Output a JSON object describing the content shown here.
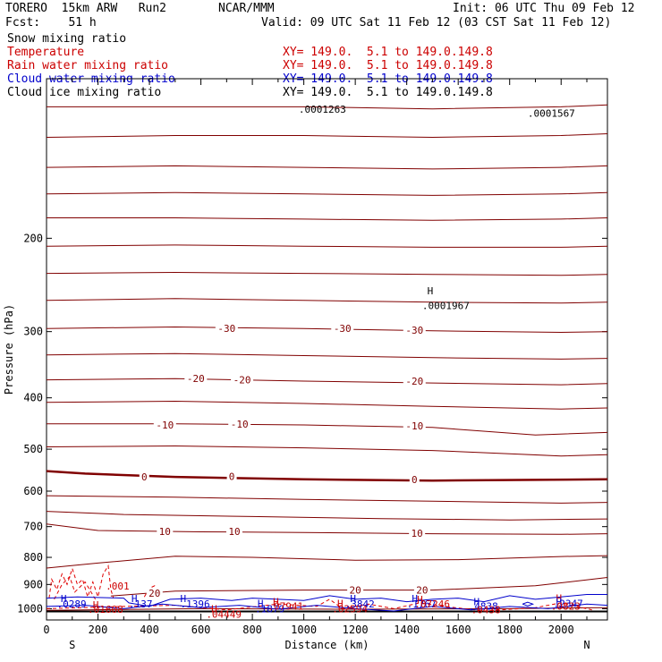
{
  "header": {
    "model": "TORERO  15km ARW   Run2",
    "org": "NCAR/MMM",
    "init": "Init: 06 UTC Thu 09 Feb 12",
    "fcst": "Fcst:    51 h",
    "valid": "Valid: 09 UTC Sat 11 Feb 12 (03 CST Sat 11 Feb 12)"
  },
  "legend": [
    {
      "label": "Snow mixing ratio",
      "xy": "",
      "color": "#000000"
    },
    {
      "label": "Temperature",
      "xy": "XY= 149.0.  5.1 to 149.0.149.8",
      "color": "#cc0000"
    },
    {
      "label": "Rain water mixing ratio",
      "xy": "XY= 149.0.  5.1 to 149.0.149.8",
      "color": "#cc0000"
    },
    {
      "label": "Cloud water mixing ratio",
      "xy": "XY= 149.0.  5.1 to 149.0.149.8",
      "color": "#0000cc"
    },
    {
      "label": "Cloud ice mixing ratio",
      "xy": "XY= 149.0.  5.1 to 149.0.149.8",
      "color": "#000000"
    }
  ],
  "chart_data": {
    "type": "contour cross-section",
    "xlabel": "Distance (km)",
    "ylabel": "Pressure (hPa)",
    "x_ticks": [
      0,
      200,
      400,
      600,
      800,
      1000,
      1200,
      1400,
      1600,
      1800,
      2000
    ],
    "y_ticks": [
      200,
      300,
      400,
      500,
      600,
      700,
      800,
      900,
      1000
    ],
    "xlim": [
      0,
      2180
    ],
    "ylim": [
      1050,
      100
    ],
    "y_scale": "log",
    "end_labels": {
      "left": "S",
      "right": "N"
    },
    "colors": {
      "temperature": "#800000",
      "rain": "#e00000",
      "cloudwater": "#0000cc",
      "ground": "#000000"
    },
    "temperature_labels": [
      {
        "text": "-30",
        "x": 700,
        "p": 296
      },
      {
        "text": "-30",
        "x": 1150,
        "p": 296
      },
      {
        "text": "-30",
        "x": 1430,
        "p": 298
      },
      {
        "text": "-20",
        "x": 580,
        "p": 368
      },
      {
        "text": "-20",
        "x": 760,
        "p": 370
      },
      {
        "text": "-20",
        "x": 1430,
        "p": 372
      },
      {
        "text": "-10",
        "x": 460,
        "p": 450
      },
      {
        "text": "-10",
        "x": 750,
        "p": 448
      },
      {
        "text": "-10",
        "x": 1430,
        "p": 452
      },
      {
        "text": "0",
        "x": 380,
        "p": 564
      },
      {
        "text": "0",
        "x": 720,
        "p": 563
      },
      {
        "text": "0",
        "x": 1430,
        "p": 570
      },
      {
        "text": "10",
        "x": 460,
        "p": 715
      },
      {
        "text": "10",
        "x": 730,
        "p": 715
      },
      {
        "text": "10",
        "x": 1440,
        "p": 720
      },
      {
        "text": "20",
        "x": 420,
        "p": 935
      },
      {
        "text": "20",
        "x": 1200,
        "p": 922
      },
      {
        "text": "20",
        "x": 1460,
        "p": 922
      }
    ],
    "extrema_labels": [
      {
        "text": "H",
        "x": 1480,
        "p": 255,
        "color": "#000000"
      },
      {
        "text": ".0001967",
        "x": 1460,
        "p": 272,
        "color": "#000000"
      },
      {
        "text": ".0001263",
        "x": 980,
        "p": 116,
        "color": "#000000"
      },
      {
        "text": ".0001567",
        "x": 1870,
        "p": 118,
        "color": "#000000"
      },
      {
        "text": ".001",
        "x": 230,
        "p": 920,
        "color": "#cc0000"
      },
      {
        "text": "H",
        "x": 55,
        "p": 972,
        "color": "#0000cc"
      },
      {
        "text": ".0289",
        "x": 40,
        "p": 995,
        "color": "#0000cc"
      },
      {
        "text": "H",
        "x": 180,
        "p": 998,
        "color": "#cc0000"
      },
      {
        "text": ".01608",
        "x": 160,
        "p": 1018,
        "color": "#cc0000"
      },
      {
        "text": "H",
        "x": 330,
        "p": 972,
        "color": "#0000cc"
      },
      {
        "text": ".137",
        "x": 320,
        "p": 995,
        "color": "#0000cc"
      },
      {
        "text": "H",
        "x": 520,
        "p": 972,
        "color": "#0000cc"
      },
      {
        "text": ".1396",
        "x": 520,
        "p": 995,
        "color": "#0000cc"
      },
      {
        "text": "H",
        "x": 640,
        "p": 1015,
        "color": "#cc0000"
      },
      {
        "text": ".04449",
        "x": 620,
        "p": 1040,
        "color": "#cc0000"
      },
      {
        "text": "H",
        "x": 820,
        "p": 992,
        "color": "#0000cc"
      },
      {
        "text": ".1879",
        "x": 810,
        "p": 1015,
        "color": "#0000cc"
      },
      {
        "text": "H",
        "x": 880,
        "p": 985,
        "color": "#cc0000"
      },
      {
        "text": ".07941",
        "x": 860,
        "p": 1005,
        "color": "#cc0000"
      },
      {
        "text": "H",
        "x": 1130,
        "p": 992,
        "color": "#cc0000"
      },
      {
        "text": ".02594",
        "x": 1110,
        "p": 1015,
        "color": "#cc0000"
      },
      {
        "text": "H",
        "x": 1180,
        "p": 972,
        "color": "#0000cc"
      },
      {
        "text": ".3842",
        "x": 1160,
        "p": 995,
        "color": "#0000cc"
      },
      {
        "text": "H",
        "x": 1420,
        "p": 972,
        "color": "#0000cc"
      },
      {
        "text": ".1767",
        "x": 1400,
        "p": 995,
        "color": "#0000cc"
      },
      {
        "text": "H",
        "x": 1440,
        "p": 975,
        "color": "#cc0000"
      },
      {
        "text": ".07246",
        "x": 1430,
        "p": 995,
        "color": "#cc0000"
      },
      {
        "text": "H",
        "x": 1660,
        "p": 985,
        "color": "#0000cc"
      },
      {
        "text": ".4838",
        "x": 1640,
        "p": 1005,
        "color": "#0000cc"
      },
      {
        "text": ".0438",
        "x": 1650,
        "p": 1020,
        "color": "#cc0000"
      },
      {
        "text": "H",
        "x": 1980,
        "p": 970,
        "color": "#cc0000"
      },
      {
        "text": "H",
        "x": 1980,
        "p": 985,
        "color": "#0000cc"
      },
      {
        "text": ".2347",
        "x": 1970,
        "p": 992,
        "color": "#0000cc"
      },
      {
        "text": ".0823",
        "x": 1960,
        "p": 1005,
        "color": "#cc0000"
      }
    ],
    "isotherms": [
      {
        "w": 1,
        "pts": [
          [
            0,
            113
          ],
          [
            500,
            113
          ],
          [
            1000,
            113
          ],
          [
            1500,
            114
          ],
          [
            2000,
            113
          ],
          [
            2180,
            112
          ]
        ]
      },
      {
        "w": 1,
        "pts": [
          [
            0,
            129
          ],
          [
            500,
            128
          ],
          [
            1000,
            128
          ],
          [
            1500,
            129
          ],
          [
            2000,
            128
          ],
          [
            2180,
            127
          ]
        ]
      },
      {
        "w": 1,
        "pts": [
          [
            0,
            147
          ],
          [
            500,
            146
          ],
          [
            1000,
            147
          ],
          [
            1500,
            148
          ],
          [
            2000,
            147
          ],
          [
            2180,
            146
          ]
        ]
      },
      {
        "w": 1,
        "pts": [
          [
            0,
            165
          ],
          [
            500,
            164
          ],
          [
            1000,
            165
          ],
          [
            1500,
            166
          ],
          [
            2000,
            165
          ],
          [
            2180,
            164
          ]
        ]
      },
      {
        "w": 1,
        "pts": [
          [
            0,
            183
          ],
          [
            500,
            183
          ],
          [
            1000,
            184
          ],
          [
            1500,
            185
          ],
          [
            2000,
            184
          ],
          [
            2180,
            183
          ]
        ]
      },
      {
        "w": 1,
        "pts": [
          [
            0,
            207
          ],
          [
            500,
            206
          ],
          [
            1000,
            207
          ],
          [
            1500,
            208
          ],
          [
            2000,
            208
          ],
          [
            2180,
            207
          ]
        ]
      },
      {
        "w": 1,
        "pts": [
          [
            0,
            233
          ],
          [
            500,
            232
          ],
          [
            1000,
            233
          ],
          [
            1500,
            234
          ],
          [
            2000,
            235
          ],
          [
            2180,
            234
          ]
        ]
      },
      {
        "w": 1,
        "pts": [
          [
            0,
            262
          ],
          [
            500,
            260
          ],
          [
            1000,
            262
          ],
          [
            1500,
            264
          ],
          [
            2000,
            265
          ],
          [
            2180,
            264
          ]
        ]
      },
      {
        "w": 1,
        "pts": [
          [
            0,
            296
          ],
          [
            500,
            294
          ],
          [
            1000,
            296
          ],
          [
            1500,
            299
          ],
          [
            2000,
            301
          ],
          [
            2180,
            300
          ]
        ]
      },
      {
        "w": 1,
        "pts": [
          [
            0,
            332
          ],
          [
            500,
            330
          ],
          [
            1000,
            333
          ],
          [
            1500,
            336
          ],
          [
            2000,
            338
          ],
          [
            2180,
            337
          ]
        ]
      },
      {
        "w": 1,
        "pts": [
          [
            0,
            370
          ],
          [
            500,
            368
          ],
          [
            1000,
            372
          ],
          [
            1500,
            375
          ],
          [
            2000,
            378
          ],
          [
            2180,
            376
          ]
        ]
      },
      {
        "w": 1,
        "pts": [
          [
            0,
            408
          ],
          [
            500,
            406
          ],
          [
            1000,
            410
          ],
          [
            1500,
            415
          ],
          [
            2000,
            420
          ],
          [
            2180,
            418
          ]
        ]
      },
      {
        "w": 1,
        "pts": [
          [
            0,
            448
          ],
          [
            500,
            448
          ],
          [
            1000,
            450
          ],
          [
            1500,
            455
          ],
          [
            1900,
            470
          ],
          [
            2180,
            465
          ]
        ]
      },
      {
        "w": 1,
        "pts": [
          [
            0,
            495
          ],
          [
            500,
            493
          ],
          [
            1000,
            497
          ],
          [
            1500,
            503
          ],
          [
            2000,
            515
          ],
          [
            2180,
            512
          ]
        ]
      },
      {
        "w": 2.5,
        "pts": [
          [
            0,
            550
          ],
          [
            150,
            556
          ],
          [
            500,
            564
          ],
          [
            1000,
            570
          ],
          [
            1500,
            573
          ],
          [
            2180,
            570
          ]
        ]
      },
      {
        "w": 1,
        "pts": [
          [
            0,
            612
          ],
          [
            500,
            616
          ],
          [
            1000,
            622
          ],
          [
            1500,
            627
          ],
          [
            2000,
            632
          ],
          [
            2180,
            630
          ]
        ]
      },
      {
        "w": 1,
        "pts": [
          [
            0,
            655
          ],
          [
            300,
            664
          ],
          [
            800,
            670
          ],
          [
            1300,
            676
          ],
          [
            1800,
            680
          ],
          [
            2180,
            677
          ]
        ]
      },
      {
        "w": 1,
        "pts": [
          [
            0,
            692
          ],
          [
            200,
            712
          ],
          [
            600,
            716
          ],
          [
            1000,
            718
          ],
          [
            1500,
            722
          ],
          [
            2000,
            724
          ],
          [
            2180,
            722
          ]
        ]
      },
      {
        "w": 1,
        "pts": [
          [
            0,
            838
          ],
          [
            200,
            820
          ],
          [
            500,
            796
          ],
          [
            800,
            800
          ],
          [
            1200,
            810
          ],
          [
            1600,
            808
          ],
          [
            2000,
            797
          ],
          [
            2180,
            794
          ]
        ]
      },
      {
        "w": 1,
        "pts": [
          [
            250,
            946
          ],
          [
            500,
            926
          ],
          [
            1000,
            922
          ],
          [
            1500,
            922
          ],
          [
            1900,
            905
          ],
          [
            2180,
            873
          ]
        ]
      },
      {
        "w": 1,
        "pts": [
          [
            0,
            1007
          ],
          [
            600,
            1000
          ],
          [
            1200,
            1002
          ],
          [
            1800,
            1000
          ],
          [
            2180,
            995
          ]
        ]
      }
    ],
    "rain_contours": [
      [
        [
          10,
          955
        ],
        [
          20,
          880
        ],
        [
          40,
          920
        ],
        [
          60,
          860
        ],
        [
          80,
          900
        ],
        [
          100,
          840
        ],
        [
          120,
          900
        ],
        [
          140,
          880
        ],
        [
          160,
          950
        ],
        [
          180,
          890
        ],
        [
          200,
          950
        ],
        [
          220,
          860
        ],
        [
          240,
          830
        ],
        [
          250,
          920
        ],
        [
          260,
          955
        ]
      ],
      [
        [
          30,
          960
        ],
        [
          60,
          900
        ],
        [
          90,
          870
        ],
        [
          110,
          930
        ],
        [
          150,
          890
        ],
        [
          190,
          960
        ]
      ],
      [
        [
          380,
          950
        ],
        [
          400,
          915
        ],
        [
          420,
          905
        ],
        [
          440,
          955
        ]
      ],
      [
        [
          0,
          1000
        ],
        [
          300,
          990
        ],
        [
          500,
          985
        ],
        [
          700,
          1005
        ],
        [
          900,
          980
        ],
        [
          1050,
          990
        ],
        [
          1100,
          960
        ],
        [
          1150,
          1000
        ],
        [
          1250,
          980
        ],
        [
          1350,
          1000
        ],
        [
          1450,
          975
        ],
        [
          1550,
          990
        ],
        [
          1700,
          1010
        ],
        [
          1900,
          995
        ],
        [
          2000,
          975
        ],
        [
          2060,
          990
        ],
        [
          2120,
          1005
        ]
      ]
    ],
    "cloud_contours": [
      [
        [
          0,
          955
        ],
        [
          120,
          950
        ],
        [
          300,
          955
        ],
        [
          320,
          975
        ],
        [
          400,
          990
        ],
        [
          480,
          960
        ],
        [
          600,
          955
        ],
        [
          720,
          965
        ],
        [
          800,
          955
        ],
        [
          900,
          960
        ],
        [
          1000,
          965
        ],
        [
          1100,
          945
        ],
        [
          1200,
          960
        ],
        [
          1300,
          955
        ],
        [
          1400,
          970
        ],
        [
          1500,
          960
        ],
        [
          1600,
          955
        ],
        [
          1700,
          970
        ],
        [
          1800,
          945
        ],
        [
          1900,
          960
        ],
        [
          2000,
          950
        ],
        [
          2100,
          940
        ],
        [
          2180,
          940
        ]
      ],
      [
        [
          0,
          990
        ],
        [
          150,
          985
        ],
        [
          300,
          1000
        ],
        [
          450,
          980
        ],
        [
          600,
          995
        ],
        [
          750,
          985
        ],
        [
          900,
          1002
        ],
        [
          1050,
          985
        ],
        [
          1200,
          1000
        ],
        [
          1350,
          1010
        ],
        [
          1500,
          990
        ],
        [
          1650,
          1005
        ],
        [
          1800,
          990
        ],
        [
          1950,
          1000
        ],
        [
          2100,
          980
        ],
        [
          2180,
          985
        ]
      ],
      [
        [
          1850,
          980
        ],
        [
          1870,
          972
        ],
        [
          1890,
          980
        ],
        [
          1870,
          988
        ],
        [
          1850,
          980
        ]
      ]
    ]
  }
}
